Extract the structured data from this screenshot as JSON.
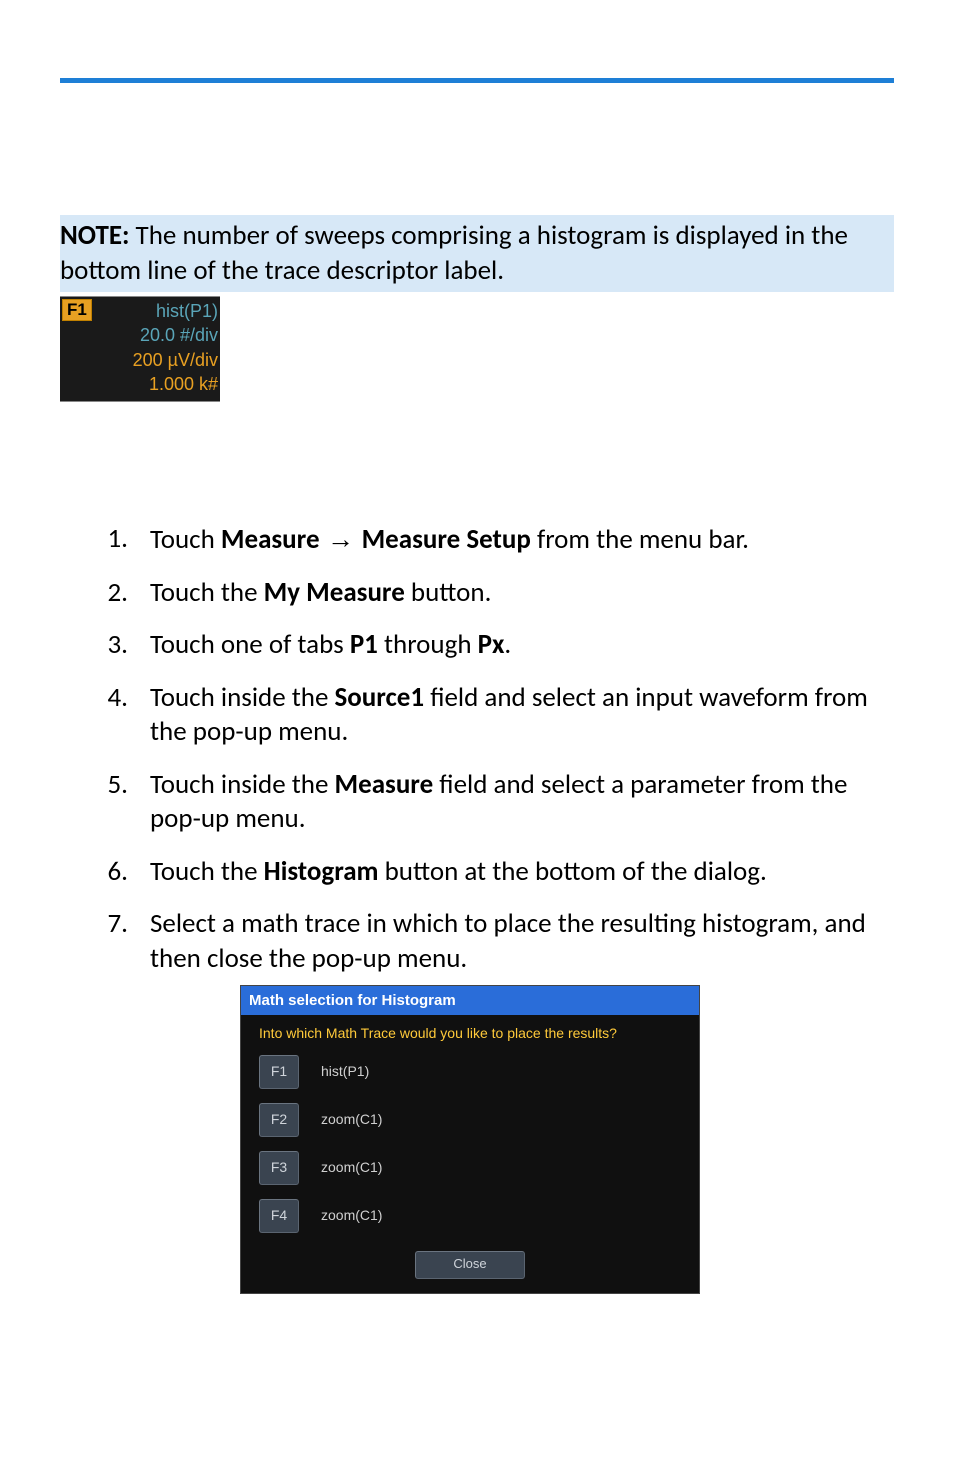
{
  "note": {
    "label": "NOTE:",
    "text": " The number of sweeps comprising a histogram is displayed in the bottom line of the trace descriptor label."
  },
  "trace": {
    "badge": "F1",
    "line1": "hist(P1)",
    "line2": "20.0 #/div",
    "line3": "200 µV/div",
    "line4": "1.000 k#"
  },
  "steps": [
    {
      "pre": "Touch ",
      "b1": "Measure",
      "arrow": " → ",
      "b2": "Measure Setup",
      "post": " from the menu bar."
    },
    {
      "pre": "Touch the ",
      "b1": "My Measure",
      "post": " button."
    },
    {
      "pre": "Touch one of tabs ",
      "b1": "P1",
      "mid": " through ",
      "b2": "Px",
      "post": "."
    },
    {
      "pre": "Touch inside the ",
      "b1": "Source1",
      "post": " field and select an input waveform from the pop-up menu."
    },
    {
      "pre": "Touch inside the ",
      "b1": "Measure",
      "post": " field and select a parameter from the pop-up menu."
    },
    {
      "pre": "Touch the ",
      "b1": "Histogram",
      "post": " button at the bottom of the dialog."
    },
    {
      "pre": "Select a math trace in which to place the resulting histogram, and then close the pop-up menu."
    }
  ],
  "dialog": {
    "title": "Math selection for Histogram",
    "prompt": "Into which Math Trace would you like to place the results?",
    "rows": [
      {
        "btn": "F1",
        "label": "hist(P1)"
      },
      {
        "btn": "F2",
        "label": "zoom(C1)"
      },
      {
        "btn": "F3",
        "label": "zoom(C1)"
      },
      {
        "btn": "F4",
        "label": "zoom(C1)"
      }
    ],
    "close": "Close"
  },
  "colors": {
    "topbar": "#1e7fd6",
    "note_bg": "#d7e8f7",
    "trace_bg": "#1a1a1a",
    "trace_badge_bg": "#e8a022",
    "trace_cyan": "#5aa5b8",
    "trace_orange": "#e8a022",
    "dialog_title_bg": "#2a6dd9",
    "dialog_body_bg": "#101010",
    "dialog_prompt": "#ffca3a",
    "dialog_btn_bg": "#3a4450",
    "dialog_btn_text": "#cfd4da"
  }
}
